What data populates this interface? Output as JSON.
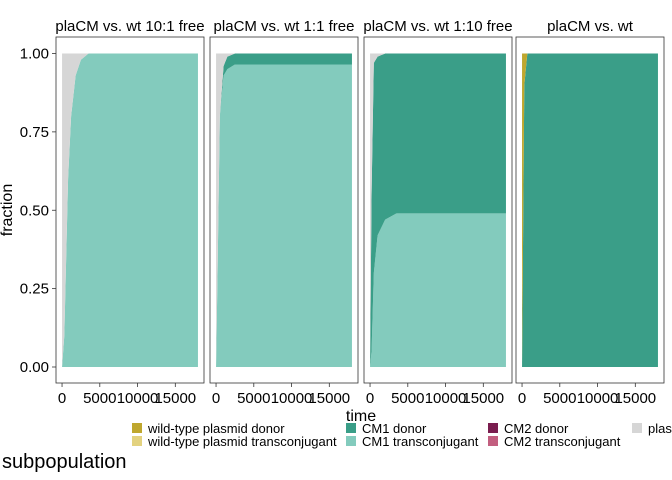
{
  "chart_data": {
    "type": "area",
    "stacked": true,
    "normalized": true,
    "xlabel": "time",
    "ylabel": "fraction",
    "ylim": [
      0,
      1
    ],
    "xlim": [
      -800,
      18800
    ],
    "x_ticks": [
      0,
      5000,
      10000,
      15000
    ],
    "x_tick_labels": [
      "0",
      "5000",
      "10000",
      "15000"
    ],
    "y_ticks": [
      0,
      0.25,
      0.5,
      0.75,
      1
    ],
    "y_tick_labels": [
      "0.00",
      "0.25",
      "0.50",
      "0.75",
      "1.00"
    ],
    "legend": {
      "title": "subpopulation",
      "position": "bottom",
      "entries": [
        {
          "key": "wt_donor",
          "label": "wild-type plasmid donor",
          "color": "#bfa72e"
        },
        {
          "key": "wt_tc",
          "label": "wild-type plasmid transconjugant",
          "color": "#e3d27f"
        },
        {
          "key": "cm1_donor",
          "label": "CM1 donor",
          "color": "#3a9e88"
        },
        {
          "key": "cm1_tc",
          "label": "CM1 transconjugant",
          "color": "#83cbbd"
        },
        {
          "key": "cm2_donor",
          "label": "CM2 donor",
          "color": "#7a1d4f"
        },
        {
          "key": "cm2_tc",
          "label": "CM2 transconjugant",
          "color": "#c25e7f"
        },
        {
          "key": "plasmid_free",
          "label": "plas",
          "color": "#d6d6d6"
        }
      ]
    },
    "stack_order": [
      "cm1_tc",
      "cm1_donor",
      "wt_tc",
      "wt_donor",
      "cm2_tc",
      "cm2_donor",
      "plasmid_free"
    ],
    "panels": [
      {
        "title": "plaCM vs. wt 10:1 free",
        "x": [
          0,
          300,
          800,
          1200,
          1800,
          2500,
          3500,
          18000
        ],
        "series": {
          "cm1_tc": [
            0.0,
            0.1,
            0.6,
            0.8,
            0.93,
            0.98,
            1.0,
            1.0
          ],
          "cm1_donor": [
            0.0,
            0.0,
            0.0,
            0.0,
            0.0,
            0.0,
            0.0,
            0.0
          ],
          "wt_tc": [
            0.0,
            0.0,
            0.0,
            0.0,
            0.0,
            0.0,
            0.0,
            0.0
          ],
          "wt_donor": [
            0.0,
            0.0,
            0.0,
            0.0,
            0.0,
            0.0,
            0.0,
            0.0
          ],
          "cm2_tc": [
            0.0,
            0.0,
            0.0,
            0.0,
            0.0,
            0.0,
            0.0,
            0.0
          ],
          "cm2_donor": [
            0.0,
            0.0,
            0.0,
            0.0,
            0.0,
            0.0,
            0.0,
            0.0
          ],
          "plasmid_free": [
            1.0,
            0.9,
            0.4,
            0.2,
            0.07,
            0.02,
            0.0,
            0.0
          ]
        }
      },
      {
        "title": "plaCM vs. wt 1:1 free",
        "x": [
          0,
          200,
          500,
          1000,
          1500,
          2500,
          18000
        ],
        "series": {
          "cm1_tc": [
            0.0,
            0.3,
            0.8,
            0.93,
            0.95,
            0.965,
            0.965
          ],
          "cm1_donor": [
            0.0,
            0.0,
            0.0,
            0.03,
            0.04,
            0.035,
            0.035
          ],
          "wt_tc": [
            0.0,
            0.0,
            0.0,
            0.0,
            0.0,
            0.0,
            0.0
          ],
          "wt_donor": [
            0.0,
            0.0,
            0.0,
            0.0,
            0.0,
            0.0,
            0.0
          ],
          "cm2_tc": [
            0.0,
            0.0,
            0.0,
            0.0,
            0.0,
            0.0,
            0.0
          ],
          "cm2_donor": [
            0.0,
            0.0,
            0.0,
            0.0,
            0.0,
            0.0,
            0.0
          ],
          "plasmid_free": [
            1.0,
            0.7,
            0.2,
            0.04,
            0.01,
            0.0,
            0.0
          ]
        }
      },
      {
        "title": "plaCM vs. wt 1:10 free",
        "x": [
          0,
          200,
          500,
          1000,
          2000,
          3500,
          18000
        ],
        "series": {
          "cm1_tc": [
            0.0,
            0.05,
            0.3,
            0.42,
            0.47,
            0.49,
            0.49
          ],
          "cm1_donor": [
            0.0,
            0.5,
            0.67,
            0.57,
            0.53,
            0.51,
            0.51
          ],
          "wt_tc": [
            0.0,
            0.0,
            0.0,
            0.0,
            0.0,
            0.0,
            0.0
          ],
          "wt_donor": [
            0.0,
            0.0,
            0.0,
            0.0,
            0.0,
            0.0,
            0.0
          ],
          "cm2_tc": [
            0.0,
            0.0,
            0.0,
            0.0,
            0.0,
            0.0,
            0.0
          ],
          "cm2_donor": [
            0.0,
            0.0,
            0.0,
            0.0,
            0.0,
            0.0,
            0.0
          ],
          "plasmid_free": [
            1.0,
            0.45,
            0.03,
            0.01,
            0.0,
            0.0,
            0.0
          ]
        }
      },
      {
        "title": "plaCM vs. wt",
        "x": [
          0,
          300,
          700,
          18000
        ],
        "series": {
          "cm1_tc": [
            0.0,
            0.0,
            0.0,
            0.0
          ],
          "cm1_donor": [
            0.0,
            0.9,
            1.0,
            1.0
          ],
          "wt_tc": [
            0.0,
            0.0,
            0.0,
            0.0
          ],
          "wt_donor": [
            1.0,
            0.1,
            0.0,
            0.0
          ],
          "cm2_tc": [
            0.0,
            0.0,
            0.0,
            0.0
          ],
          "cm2_donor": [
            0.0,
            0.0,
            0.0,
            0.0
          ],
          "plasmid_free": [
            0.0,
            0.0,
            0.0,
            0.0
          ]
        }
      }
    ]
  }
}
